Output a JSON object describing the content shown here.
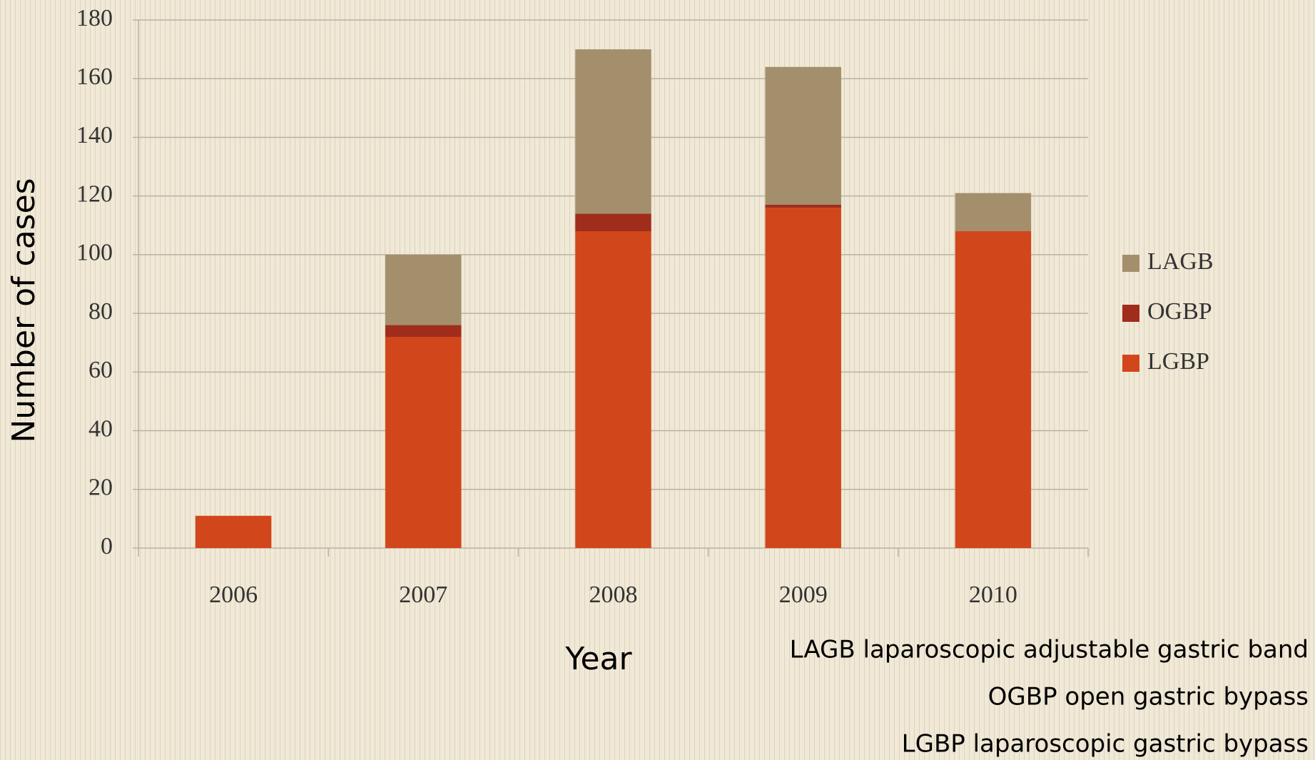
{
  "chart_data": {
    "type": "bar",
    "stacked": true,
    "categories": [
      "2006",
      "2007",
      "2008",
      "2009",
      "2010"
    ],
    "series": [
      {
        "name": "LAGB",
        "color": "#a48f6c",
        "values": [
          0,
          24,
          56,
          47,
          13
        ]
      },
      {
        "name": "OGBP",
        "color": "#a02d1c",
        "values": [
          0,
          4,
          6,
          1,
          0
        ]
      },
      {
        "name": "LGBP",
        "color": "#d2461b",
        "values": [
          11,
          72,
          108,
          116,
          108
        ]
      }
    ],
    "xlabel": "Year",
    "ylabel": "Number of cases",
    "ylim": [
      0,
      180
    ],
    "yticks": [
      0,
      20,
      40,
      60,
      80,
      100,
      120,
      140,
      160,
      180
    ],
    "grid": true,
    "legend": "right",
    "notes": [
      "LAGB laparoscopic adjustable gastric band",
      "OGBP open gastric bypass",
      "LGBP laparoscopic gastric bypass"
    ]
  }
}
